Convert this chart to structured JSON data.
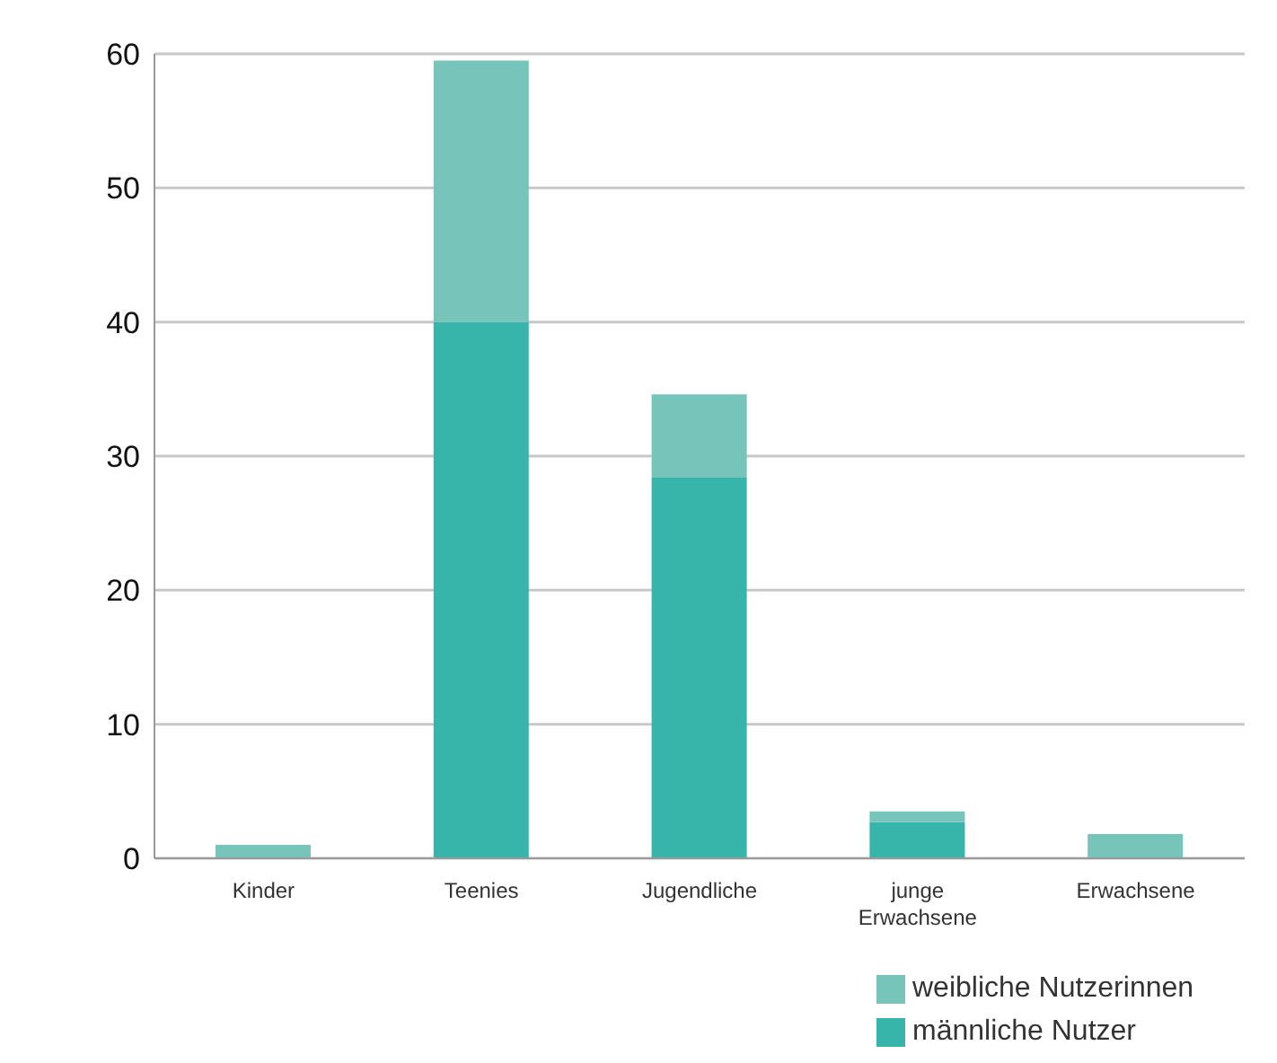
{
  "chart_data": {
    "type": "bar",
    "stacked": true,
    "categories": [
      "Kinder",
      "Teenies",
      "Jugendliche",
      "junge Erwachsene",
      "Erwachsene"
    ],
    "series": [
      {
        "name": "männliche Nutzer",
        "color": "#38b5aa",
        "values": [
          0,
          40,
          28.4,
          2.7,
          0
        ]
      },
      {
        "name": "weibliche Nutzerinnen",
        "color": "#77c5ba",
        "values": [
          1,
          19.5,
          6.2,
          0.8,
          1.8
        ]
      }
    ],
    "ylim": [
      0,
      60
    ],
    "yticks": [
      0,
      10,
      20,
      30,
      40,
      50,
      60
    ],
    "grid": "y",
    "legend": "bottom right"
  }
}
